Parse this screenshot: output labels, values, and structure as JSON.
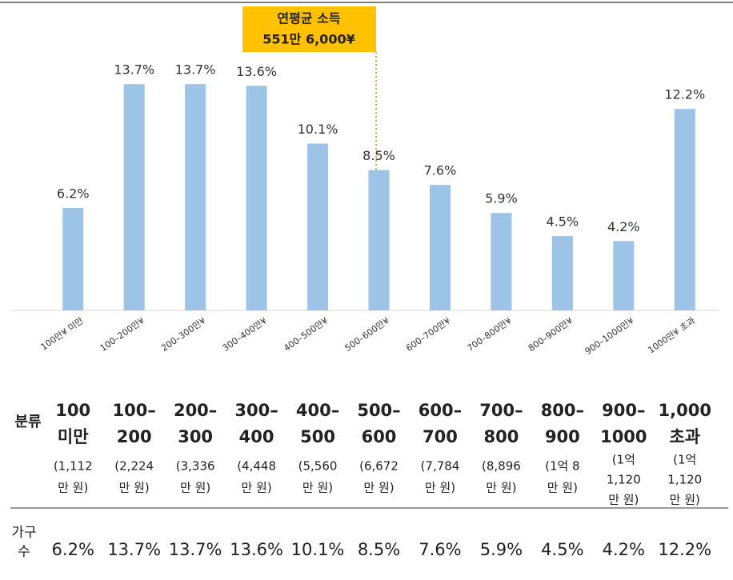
{
  "chart_data": {
    "type": "bar",
    "categories": [
      "100만¥ 미만",
      "100–200만¥",
      "200–300만¥",
      "300–400만¥",
      "400–500만¥",
      "500–600만¥",
      "600–700만¥",
      "700–800만¥",
      "800–900만¥",
      "900–1000만¥",
      "1000만¥ 초과"
    ],
    "values": [
      6.2,
      13.7,
      13.7,
      13.6,
      10.1,
      8.5,
      7.6,
      5.9,
      4.5,
      4.2,
      12.2
    ],
    "value_labels": [
      "6.2%",
      "13.7%",
      "13.7%",
      "13.6%",
      "10.1%",
      "8.5%",
      "7.6%",
      "5.9%",
      "4.5%",
      "4.2%",
      "12.2%"
    ],
    "color": "#9dc3e6",
    "ylim": [
      0,
      14
    ],
    "annotation": [
      "연평균 소득",
      "551만 6,000¥"
    ]
  },
  "table": {
    "header_label": "분류",
    "columns": [
      {
        "name": [
          "100",
          "미만"
        ],
        "note": [
          "(1,112",
          "만 원)"
        ]
      },
      {
        "name": [
          "100–",
          "200"
        ],
        "note": [
          "(2,224",
          "만 원)"
        ]
      },
      {
        "name": [
          "200–",
          "300"
        ],
        "note": [
          "(3,336",
          "만 원)"
        ]
      },
      {
        "name": [
          "300–",
          "400"
        ],
        "note": [
          "(4,448",
          "만 원)"
        ]
      },
      {
        "name": [
          "400–",
          "500"
        ],
        "note": [
          "(5,560",
          "만 원)"
        ]
      },
      {
        "name": [
          "500–",
          "600"
        ],
        "note": [
          "(6,672",
          "만 원)"
        ]
      },
      {
        "name": [
          "600–",
          "700"
        ],
        "note": [
          "(7,784",
          "만 원)"
        ]
      },
      {
        "name": [
          "700–",
          "800"
        ],
        "note": [
          "(8,896",
          "만 원)"
        ]
      },
      {
        "name": [
          "800–",
          "900"
        ],
        "note": [
          "(1억 8",
          "만 원)"
        ]
      },
      {
        "name": [
          "900–",
          "1000"
        ],
        "note": [
          "(1억",
          "1,120",
          "만 원)"
        ]
      },
      {
        "name": [
          "1,000",
          "초과"
        ],
        "note": [
          "(1억",
          "1,120",
          "만 원)"
        ]
      }
    ],
    "row_label": [
      "가구",
      "수"
    ],
    "values": [
      "6.2%",
      "13.7%",
      "13.7%",
      "13.6%",
      "10.1%",
      "8.5%",
      "7.6%",
      "5.9%",
      "4.5%",
      "4.2%",
      "12.2%"
    ]
  }
}
